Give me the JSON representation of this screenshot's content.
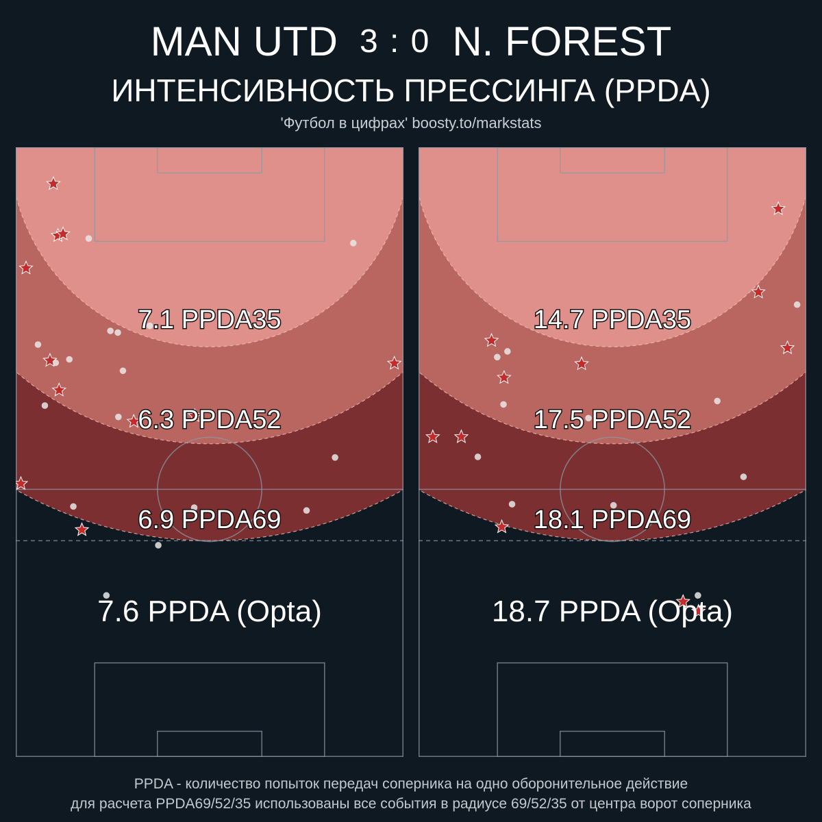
{
  "header": {
    "home_team": "MAN UTD",
    "score": "3 : 0",
    "away_team": "N. FOREST",
    "subtitle": "ИНТЕНСИВНОСТЬ ПРЕССИНГА (PPDA)",
    "credit": "'Футбол в цифрах' boosty.to/markstats"
  },
  "footnote": {
    "line1": "PPDA - количество попыток передач соперника на одно оборонительное действие",
    "line2": "для расчета PPDA69/52/35 использованы все события в радиусе 69/52/35 от центра ворот соперника"
  },
  "colors": {
    "background": "#0f1922",
    "zone35": "#e0908a",
    "zone52": "#b96560",
    "zone69": "#7c2f31",
    "pitch_lines": "#8a98a4",
    "star": "#c42b2b",
    "dot": "#e8e8e8"
  },
  "chart_data": [
    {
      "type": "scatter",
      "team": "MAN UTD",
      "zones": [
        {
          "radius": 35,
          "label": "7.1 PPDA35",
          "value": 7.1
        },
        {
          "radius": 52,
          "label": "6.3 PPDA52",
          "value": 6.3
        },
        {
          "radius": 69,
          "label": "6.9 PPDA69",
          "value": 6.9
        }
      ],
      "opta_label": "7.6 PPDA (Opta)",
      "opta_value": 7.6,
      "stars": [
        [
          6.6,
          113.6
        ],
        [
          7.4,
          104.5
        ],
        [
          8.3,
          104.8
        ],
        [
          1.8,
          98.8
        ],
        [
          6.0,
          82.6
        ],
        [
          7.6,
          77.4
        ],
        [
          20.7,
          71.9
        ],
        [
          31.4,
          72.9
        ],
        [
          0.9,
          61.0
        ],
        [
          66.4,
          82.1
        ],
        [
          11.6,
          52.9
        ]
      ],
      "dots": [
        [
          12.8,
          104.0
        ],
        [
          59.2,
          103.2
        ],
        [
          40.5,
          90.7
        ],
        [
          23.5,
          88.7
        ],
        [
          16.6,
          87.8
        ],
        [
          17.9,
          87.5
        ],
        [
          3.9,
          85.4
        ],
        [
          7.0,
          82.2
        ],
        [
          9.4,
          82.8
        ],
        [
          18.8,
          80.8
        ],
        [
          5.1,
          74.7
        ],
        [
          18.0,
          72.7
        ],
        [
          56.0,
          65.6
        ],
        [
          31.3,
          56.8
        ],
        [
          10.1,
          57.0
        ],
        [
          25.0,
          50.2
        ],
        [
          51.0,
          56.3
        ],
        [
          15.9,
          41.4
        ]
      ]
    },
    {
      "type": "scatter",
      "team": "N. FOREST",
      "zones": [
        {
          "radius": 35,
          "label": "14.7 PPDA35",
          "value": 14.7
        },
        {
          "radius": 52,
          "label": "17.5 PPDA52",
          "value": 17.5
        },
        {
          "radius": 69,
          "label": "18.1 PPDA69",
          "value": 18.1
        }
      ],
      "opta_label": "18.7 PPDA (Opta)",
      "opta_value": 18.7,
      "stars": [
        [
          63.1,
          109.2
        ],
        [
          59.6,
          94.6
        ],
        [
          12.8,
          86.1
        ],
        [
          28.6,
          82.0
        ],
        [
          64.7,
          84.8
        ],
        [
          15.0,
          79.6
        ],
        [
          2.5,
          69.2
        ],
        [
          7.5,
          69.2
        ],
        [
          14.6,
          53.4
        ],
        [
          46.4,
          40.3
        ],
        [
          49.1,
          38.6
        ]
      ],
      "dots": [
        [
          66.4,
          92.4
        ],
        [
          15.6,
          84.2
        ],
        [
          13.8,
          83.2
        ],
        [
          14.9,
          74.9
        ],
        [
          29.8,
          72.5
        ],
        [
          52.4,
          75.5
        ],
        [
          10.4,
          65.7
        ],
        [
          57.0,
          62.2
        ],
        [
          34.2,
          57.2
        ],
        [
          16.4,
          57.4
        ],
        [
          49.0,
          41.4
        ]
      ]
    }
  ]
}
